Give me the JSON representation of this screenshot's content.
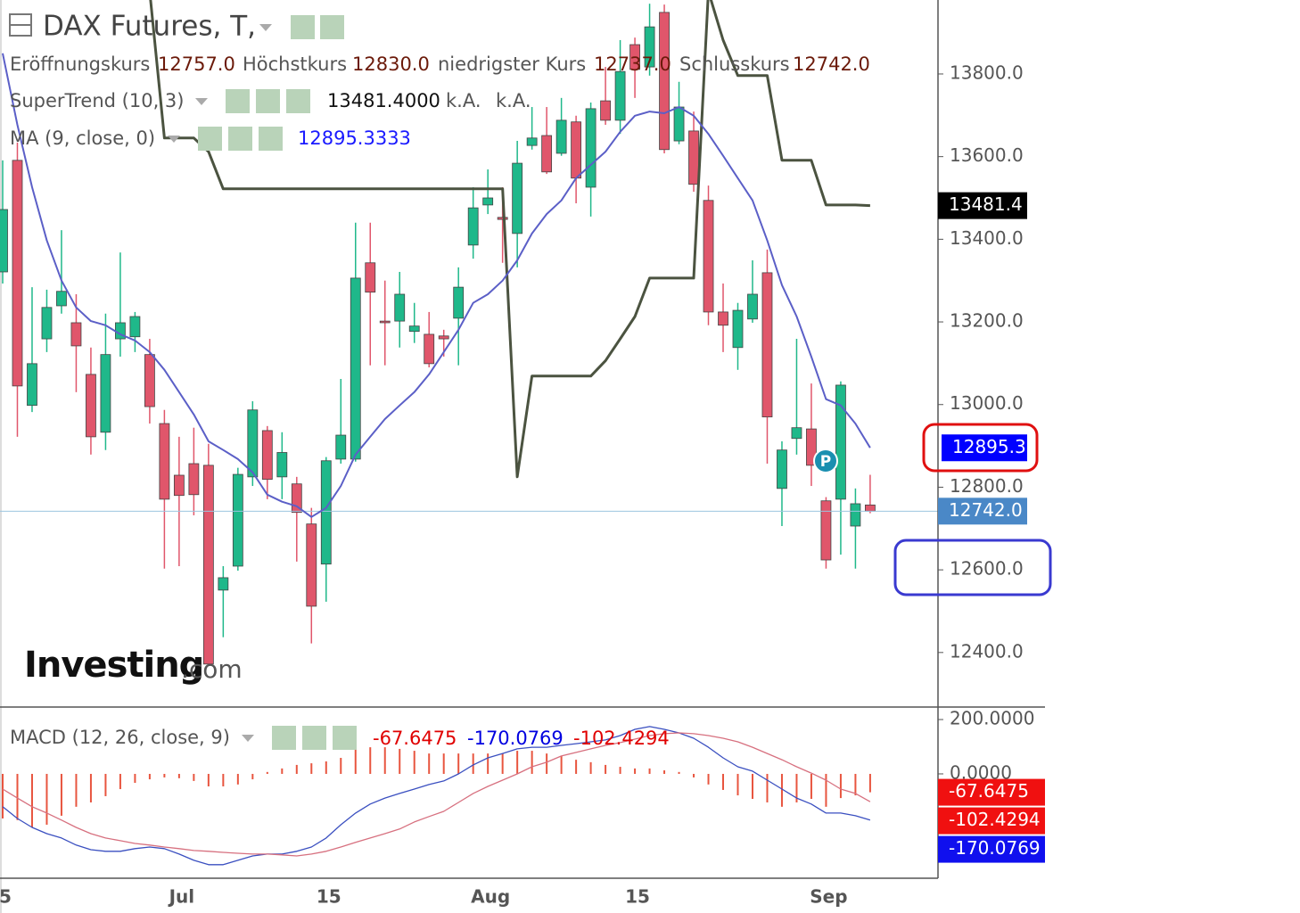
{
  "title": "DAX Futures, T,",
  "event_marker": "P",
  "watermark": {
    "brand": "Investing",
    "suffix": ".com"
  },
  "chart_data": [
    {
      "type": "candlestick",
      "categories": [
        "5",
        null,
        null,
        null,
        null,
        null,
        null,
        null,
        null,
        null,
        null,
        null,
        "Jul",
        null,
        null,
        null,
        null,
        null,
        null,
        null,
        null,
        null,
        "15",
        null,
        null,
        null,
        null,
        null,
        null,
        null,
        null,
        null,
        null,
        "Aug",
        null,
        null,
        null,
        null,
        null,
        null,
        null,
        null,
        null,
        "15",
        null,
        null,
        null,
        null,
        null,
        null,
        null,
        null,
        null,
        null,
        null,
        null,
        "Sep",
        null,
        null,
        null
      ],
      "open": [
        13321,
        13591,
        12998,
        13159,
        13239,
        13198,
        13073,
        12933,
        13159,
        13164,
        13121,
        12954,
        12829,
        12857,
        12853,
        12551,
        12609,
        12825,
        12937,
        12825,
        12808,
        12711,
        12614,
        12868,
        12868,
        13343,
        13202,
        13202,
        13177,
        13170,
        13166,
        13209,
        13386,
        13483,
        13453,
        13414,
        13627,
        13651,
        13608,
        13684,
        13526,
        13735,
        13688,
        13871,
        13817,
        13949,
        13638,
        13662,
        13494,
        13224,
        13138,
        13207,
        13319,
        12797,
        12918,
        12941,
        12767,
        12771,
        12706,
        12757
      ],
      "high": [
        13591,
        13634,
        13284,
        13278,
        13422,
        13267,
        13138,
        13220,
        13368,
        13224,
        13159,
        12987,
        12922,
        12944,
        12905,
        12609,
        12847,
        13008,
        12948,
        12933,
        12825,
        12750,
        12873,
        13062,
        13440,
        13440,
        13300,
        13321,
        13246,
        13224,
        13181,
        13332,
        13526,
        13569,
        13526,
        13638,
        13720,
        13720,
        13742,
        13699,
        13731,
        13817,
        13882,
        13888,
        13970,
        13968,
        13781,
        13709,
        13530,
        13293,
        13246,
        13349,
        13375,
        12911,
        13159,
        13051,
        12776,
        13056,
        12797,
        12830
      ],
      "low": [
        13293,
        12922,
        12982,
        13127,
        13220,
        13030,
        12879,
        12890,
        13116,
        13127,
        12954,
        12603,
        12609,
        12732,
        12372,
        12437,
        12598,
        12803,
        12771,
        12771,
        12620,
        12422,
        12523,
        12857,
        12862,
        13095,
        13095,
        13138,
        13149,
        13090,
        13116,
        13095,
        13353,
        13461,
        13343,
        13332,
        13617,
        13558,
        13602,
        13487,
        13455,
        13677,
        13655,
        13742,
        13796,
        13608,
        13630,
        13515,
        13192,
        13127,
        13084,
        13198,
        12857,
        12706,
        12879,
        12803,
        12603,
        12637,
        12603,
        12737
      ],
      "close": [
        13472,
        13045,
        13099,
        13235,
        13274,
        13142,
        12922,
        13121,
        13198,
        13213,
        12995,
        12771,
        12780,
        12782,
        12372,
        12581,
        12831,
        12987,
        12819,
        12884,
        12739,
        12512,
        12864,
        12926,
        13306,
        13272,
        13198,
        13267,
        13190,
        13099,
        13159,
        13284,
        13476,
        13500,
        13448,
        13584,
        13645,
        13563,
        13688,
        13548,
        13716,
        13688,
        13806,
        13811,
        13914,
        13617,
        13720,
        13533,
        13224,
        13192,
        13228,
        13267,
        12970,
        12890,
        12944,
        12853,
        12624,
        13047,
        12760,
        12742
      ],
      "up_color": "#1fb88a",
      "down_color": "#e0566b",
      "legend": [
        {
          "name": "Eröffnungskurs",
          "label": "12757.0"
        },
        {
          "name": "Höchstkurs",
          "label": "12830.0"
        },
        {
          "name": "niedrigster Kurs",
          "label": "12737.0"
        },
        {
          "name": "Schlusskurs",
          "label": "12742.0"
        }
      ],
      "overlays": [
        {
          "name": "SuperTrend (10, 3)",
          "color": "#4b5340",
          "width": 3,
          "tag_color": "#000000",
          "legend_values": [
            "13481.4000",
            "k.A.",
            "k.A."
          ],
          "values": [
            null,
            null,
            null,
            null,
            null,
            null,
            null,
            null,
            null,
            null,
            14000,
            13645,
            13645,
            13645,
            13612,
            13522,
            13522,
            13522,
            13522,
            13522,
            13522,
            13522,
            13522,
            13522,
            13522,
            13522,
            13522,
            13522,
            13522,
            13522,
            13522,
            13522,
            13522,
            13522,
            13522,
            12825,
            13069,
            13069,
            13069,
            13069,
            13069,
            13106,
            13159,
            13213,
            13306,
            13306,
            13306,
            13306,
            14000,
            13882,
            13796,
            13796,
            13796,
            13591,
            13591,
            13591,
            13483,
            13483,
            13483,
            13481.4
          ]
        },
        {
          "name": "MA (9, close, 0)",
          "color": "#5b5fc7",
          "width": 2,
          "values": [
            13850,
            13677,
            13526,
            13397,
            13300,
            13235,
            13202,
            13192,
            13170,
            13155,
            13127,
            13084,
            13030,
            12976,
            12911,
            12890,
            12868,
            12836,
            12782,
            12765,
            12754,
            12728,
            12750,
            12803,
            12879,
            12922,
            12965,
            12998,
            13030,
            13073,
            13127,
            13181,
            13246,
            13267,
            13300,
            13349,
            13414,
            13461,
            13494,
            13548,
            13580,
            13612,
            13660,
            13699,
            13709,
            13705,
            13720,
            13699,
            13655,
            13602,
            13548,
            13494,
            13397,
            13289,
            13213,
            13116,
            13013,
            12998,
            12954,
            12895.3333
          ]
        }
      ],
      "price_tags": [
        {
          "value": 12895.3,
          "label": "12895.3",
          "color": "#0000ff"
        },
        {
          "value": 12742,
          "label": "12742.0",
          "color": "#4a88c7"
        }
      ],
      "ylim": [
        12268,
        13979
      ],
      "yticks": [
        {
          "value": 12400,
          "label": "12400.0"
        },
        {
          "value": 12600,
          "label": "12600.0"
        },
        {
          "value": 12800,
          "label": "12800.0"
        },
        {
          "value": 13000,
          "label": "13000.0"
        },
        {
          "value": 13200,
          "label": "13200.0"
        },
        {
          "value": 13400,
          "label": "13400.0"
        },
        {
          "value": 13600,
          "label": "13600.0"
        },
        {
          "value": 13800,
          "label": "13800.0"
        }
      ]
    },
    {
      "type": "macd",
      "name": "MACD (12, 26, close, 9)",
      "ylim": [
        -384,
        246
      ],
      "yticks": [
        {
          "value": 200,
          "label": "200.0000"
        },
        {
          "value": 0,
          "label": "0.0000"
        }
      ],
      "series": [
        {
          "style": "bar",
          "color": "#e8553f",
          "legend_color": "#e00000",
          "tag_color": "#f01010",
          "values": [
            -164,
            -170,
            -197,
            -187,
            -154,
            -121,
            -105,
            -82,
            -56,
            -33,
            -20,
            -13,
            -16,
            -26,
            -46,
            -46,
            -39,
            -20,
            7,
            20,
            33,
            39,
            46,
            59,
            92,
            98,
            98,
            92,
            85,
            75,
            75,
            75,
            75,
            75,
            75,
            85,
            85,
            75,
            66,
            52,
            43,
            33,
            26,
            20,
            20,
            13,
            7,
            -13,
            -39,
            -59,
            -79,
            -92,
            -105,
            -121,
            -105,
            -92,
            -121,
            -89,
            -79,
            -67.6475
          ]
        },
        {
          "style": "line",
          "color": "#3a4fc0",
          "legend_color": "#0000e0",
          "tag_color": "#1010ee",
          "values": [
            -121,
            -164,
            -197,
            -220,
            -236,
            -262,
            -279,
            -285,
            -285,
            -275,
            -269,
            -275,
            -295,
            -318,
            -334,
            -334,
            -318,
            -302,
            -295,
            -295,
            -285,
            -269,
            -236,
            -187,
            -144,
            -111,
            -89,
            -72,
            -56,
            -39,
            -26,
            0,
            33,
            59,
            75,
            92,
            98,
            98,
            105,
            111,
            118,
            125,
            141,
            164,
            174,
            164,
            151,
            131,
            98,
            59,
            26,
            10,
            -23,
            -56,
            -89,
            -111,
            -144,
            -144,
            -154,
            -170.0769
          ]
        },
        {
          "style": "line",
          "color": "#d7707f",
          "legend_color": "#e00000",
          "tag_color": "#f01010",
          "values": [
            -56,
            -89,
            -121,
            -144,
            -170,
            -197,
            -220,
            -236,
            -246,
            -256,
            -262,
            -269,
            -275,
            -282,
            -285,
            -289,
            -292,
            -295,
            -295,
            -298,
            -302,
            -295,
            -285,
            -269,
            -252,
            -236,
            -220,
            -203,
            -177,
            -157,
            -138,
            -105,
            -72,
            -46,
            -23,
            0,
            26,
            43,
            66,
            79,
            92,
            105,
            115,
            128,
            141,
            148,
            151,
            148,
            141,
            131,
            118,
            98,
            75,
            52,
            26,
            3,
            -23,
            -56,
            -72,
            -102.4294
          ]
        }
      ]
    }
  ]
}
